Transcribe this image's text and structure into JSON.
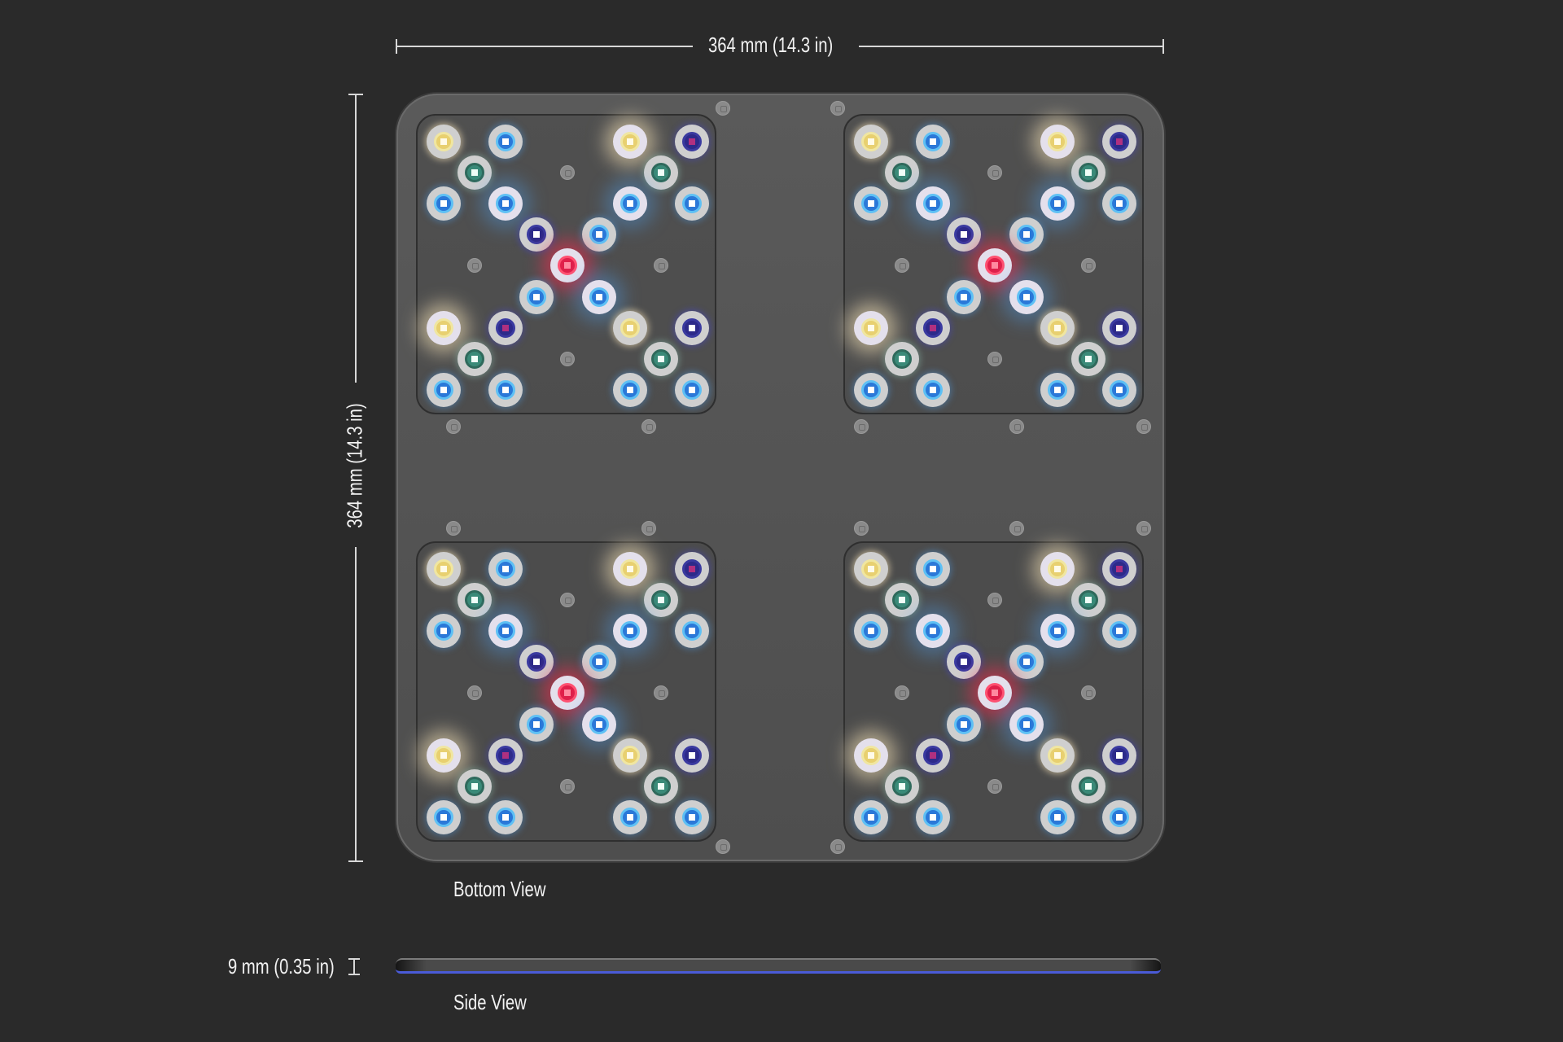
{
  "dimensions": {
    "width_label": "364 mm (14.3 in)",
    "height_label": "364 mm (14.3 in)",
    "thickness_label": "9 mm (0.35 in)"
  },
  "views": {
    "bottom_label": "Bottom View",
    "side_label": "Side View"
  },
  "colors": {
    "background": "#2a2a2a",
    "panel": "#555555",
    "side_accent": "#4a5bd8",
    "led_warm_white": "#e8d070",
    "led_blue": "#2b78d8",
    "led_teal": "#3a8a78",
    "led_royal_blue": "#2d2a8a",
    "led_red": "#e0204a"
  }
}
